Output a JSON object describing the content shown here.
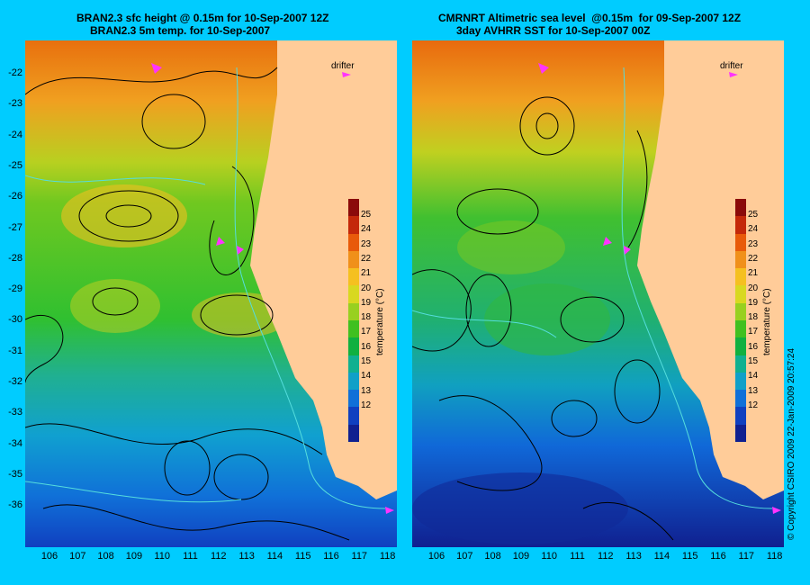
{
  "left_panel": {
    "title_line1": "BRAN2.3 sfc height @ 0.15m for 10-Sep-2007 12Z",
    "title_line2": "BRAN2.3 5m temp. for 10-Sep-2007",
    "drifter_label": "drifter"
  },
  "right_panel": {
    "title_line1": "CMRNRT Altimetric sea level  @0.15m  for 09-Sep-2007 12Z",
    "title_line2": "3day AVHRR SST for 10-Sep-2007 00Z",
    "drifter_label": "drifter"
  },
  "lat_ticks": [
    "-22",
    "-23",
    "-24",
    "-25",
    "-26",
    "-27",
    "-28",
    "-29",
    "-30",
    "-31",
    "-32",
    "-33",
    "-34",
    "-35",
    "-36"
  ],
  "lon_ticks": [
    "106",
    "107",
    "108",
    "109",
    "110",
    "111",
    "112",
    "113",
    "114",
    "115",
    "116",
    "117",
    "118"
  ],
  "colorbar": {
    "title": "temperature (°C)",
    "ticks": [
      "25",
      "24",
      "23",
      "22",
      "21",
      "20",
      "19",
      "18",
      "17",
      "16",
      "15",
      "14",
      "13",
      "12"
    ],
    "colors": [
      "#8b0a0a",
      "#c4280a",
      "#e85a0a",
      "#f0901a",
      "#f5c020",
      "#d8d820",
      "#98d020",
      "#40c020",
      "#10b040",
      "#10b090",
      "#10a0c8",
      "#1070d8",
      "#1040c0",
      "#102090"
    ]
  },
  "copyright": "© Copyright CSIRO 2009   22-Jan-2009 20:57:24",
  "colors": {
    "background": "#00ccff",
    "land": "#ffcc99",
    "contour": "#000000",
    "isobath": "#55dddd",
    "drifter": "#ff33ff"
  }
}
